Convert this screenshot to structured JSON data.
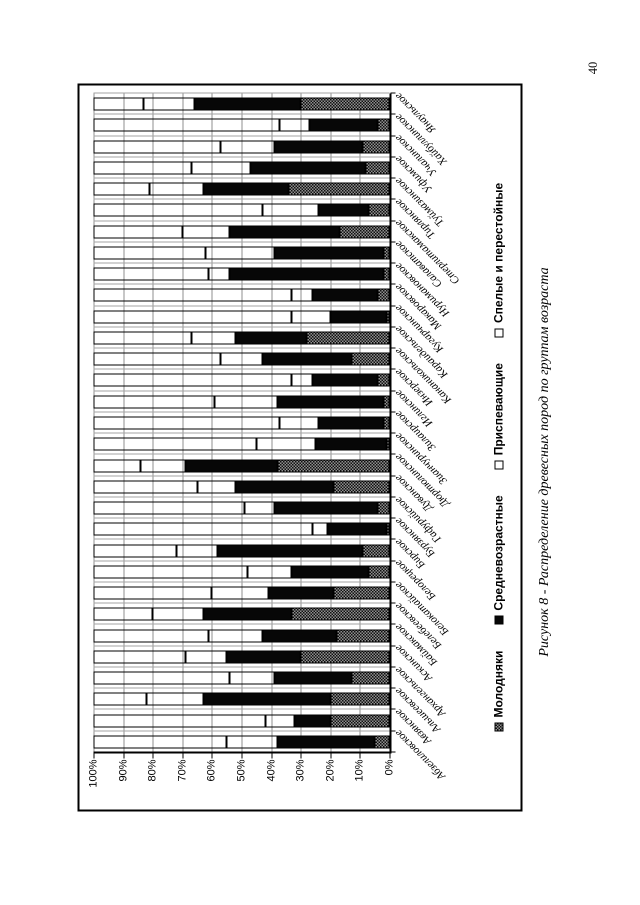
{
  "page": {
    "number": "40"
  },
  "figure": {
    "caption": "Рисунок 8 - Распределение древесных пород по группам возраста"
  },
  "chart_data": {
    "type": "bar",
    "stacked": true,
    "percent_stacked": true,
    "orientation": "column chart rotated 90° counter-clockwise on the page (categories read top-to-bottom, 100% axis at page bottom-left)",
    "display_order_on_page": "top-to-bottom reverse alphabetical (Янаульское … Абзелиловское)",
    "title": "",
    "xlabel": "",
    "ylabel": "",
    "grid": true,
    "legend_position": "below chart (appears as rotated column near page right edge)",
    "value_axis": {
      "range": [
        0,
        100
      ],
      "ticks": [
        "100%",
        "90%",
        "80%",
        "70%",
        "60%",
        "50%",
        "40%",
        "30%",
        "20%",
        "10%",
        "0%"
      ]
    },
    "legend": [
      {
        "label": "Молодняки",
        "swatch": "speckled-dark"
      },
      {
        "label": "Средневозрастные",
        "swatch": "black"
      },
      {
        "label": "Приспевающие",
        "swatch": "white"
      },
      {
        "label": "Спелые и перестойные",
        "swatch": "white"
      }
    ],
    "categories": [
      "Абзелиловское",
      "Авзянское",
      "Альшеевское",
      "Архангельское",
      "Аскинское",
      "Баймакское",
      "Белебеевское",
      "Белокатайское",
      "Белорецкое",
      "Бирское",
      "Бурзянское",
      "Гафурийское",
      "Дуванское",
      "Дюртюлинское",
      "Зианчуринское",
      "Зилаирское",
      "Иглинское",
      "Инзерское",
      "Кананикольское",
      "Караидельское",
      "Кугарчинское",
      "Макаровское",
      "Нуримановское",
      "Салаватское",
      "Стерлитамакское",
      "Тирлянское",
      "Туймазинское",
      "Уфимское",
      "Учалинское",
      "Хайбуллинское",
      "Янаульское"
    ],
    "series": [
      {
        "name": "Молодняки",
        "values": [
          5,
          20,
          20,
          13,
          30,
          18,
          33,
          19,
          7,
          9,
          1,
          4,
          19,
          38,
          1,
          2,
          2,
          4,
          13,
          28,
          1,
          4,
          2,
          2,
          17,
          7,
          34,
          8,
          9,
          4,
          30
        ]
      },
      {
        "name": "Средневозрастные",
        "values": [
          33,
          12,
          43,
          26,
          25,
          25,
          30,
          22,
          26,
          49,
          20,
          35,
          33,
          31,
          24,
          22,
          36,
          22,
          30,
          24,
          19,
          22,
          52,
          37,
          37,
          17,
          29,
          39,
          30,
          23,
          36
        ]
      },
      {
        "name": "Приспевающие",
        "values": [
          17,
          10,
          19,
          15,
          14,
          18,
          17,
          19,
          15,
          14,
          5,
          10,
          13,
          15,
          20,
          13,
          21,
          7,
          14,
          15,
          13,
          7,
          7,
          23,
          16,
          19,
          18,
          20,
          18,
          10,
          17
        ]
      },
      {
        "name": "Спелые и перестойные",
        "values": [
          45,
          58,
          18,
          46,
          31,
          39,
          20,
          40,
          52,
          28,
          74,
          51,
          35,
          16,
          55,
          63,
          41,
          67,
          43,
          33,
          67,
          67,
          39,
          38,
          30,
          57,
          19,
          33,
          43,
          63,
          17
        ]
      }
    ]
  }
}
